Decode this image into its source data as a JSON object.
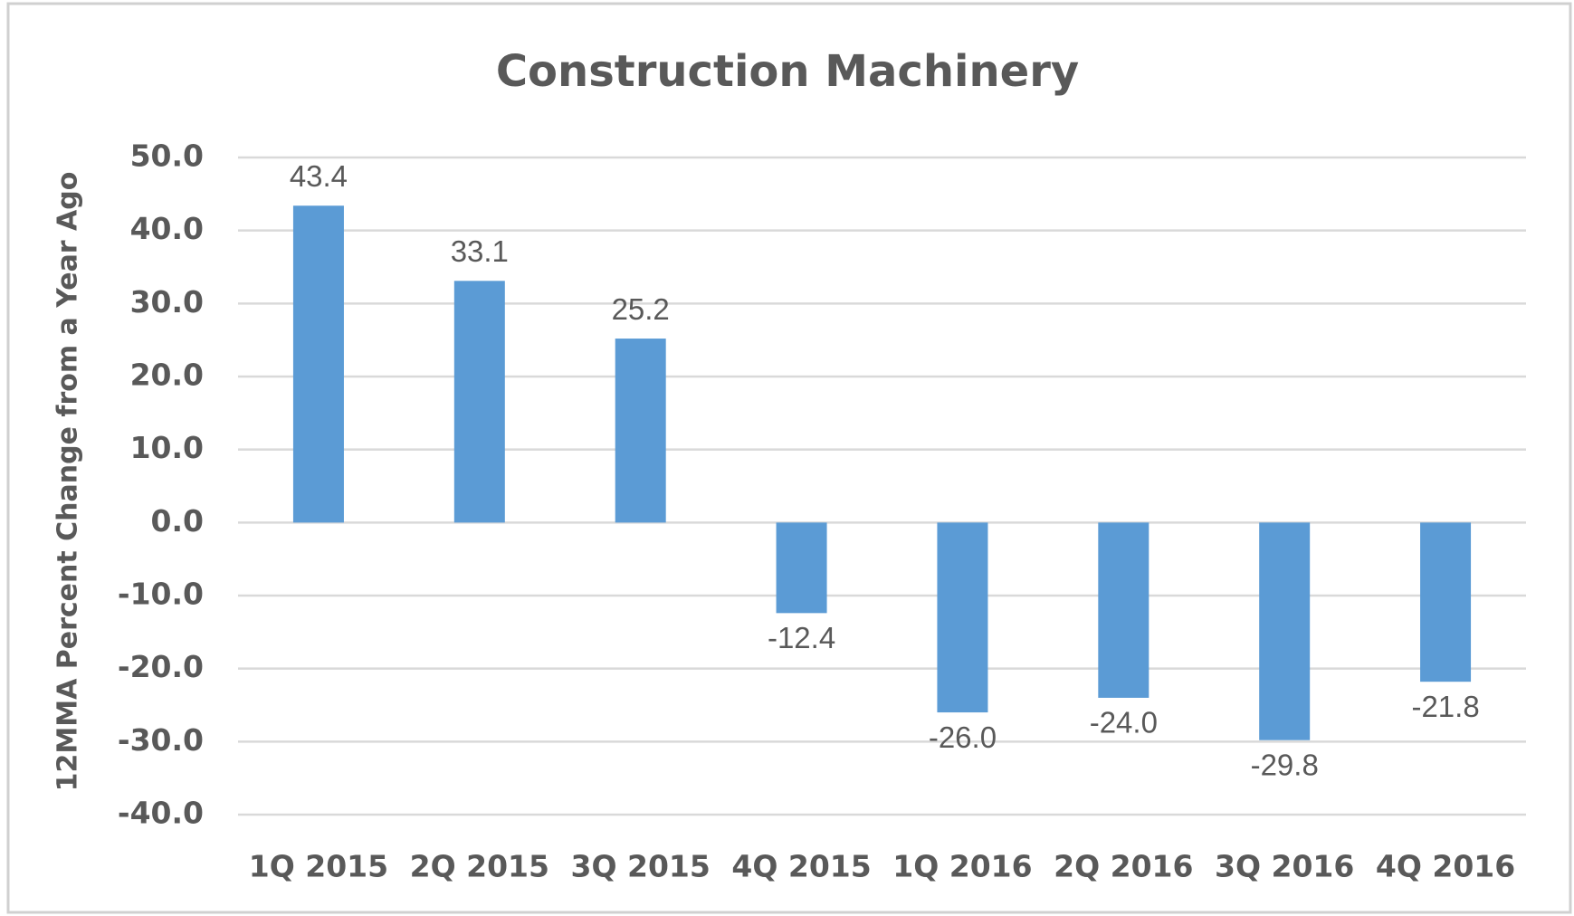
{
  "chart_data": {
    "type": "bar",
    "title": "Construction Machinery",
    "y_label": "12MMA Percent Change from a Year Ago",
    "categories": [
      "1Q 2015",
      "2Q 2015",
      "3Q 2015",
      "4Q 2015",
      "1Q 2016",
      "2Q 2016",
      "3Q 2016",
      "4Q 2016"
    ],
    "values": [
      43.4,
      33.1,
      25.2,
      -12.4,
      -26.0,
      -24.0,
      -29.8,
      -21.8
    ],
    "value_labels": [
      "43.4",
      "33.1",
      "25.2",
      "-12.4",
      "-26.0",
      "-24.0",
      "-29.8",
      "-21.8"
    ],
    "color": "#5b9bd5",
    "ylim": [
      -40,
      50
    ],
    "yticks": [
      {
        "value": -40,
        "label": "-40.0"
      },
      {
        "value": -30,
        "label": "-30.0"
      },
      {
        "value": -20,
        "label": "-20.0"
      },
      {
        "value": -10,
        "label": "-10.0"
      },
      {
        "value": 0,
        "label": "0.0"
      },
      {
        "value": 10,
        "label": "10.0"
      },
      {
        "value": 20,
        "label": "20.0"
      },
      {
        "value": 30,
        "label": "30.0"
      },
      {
        "value": 40,
        "label": "40.0"
      },
      {
        "value": 50,
        "label": "50.0"
      }
    ],
    "grid": true
  }
}
